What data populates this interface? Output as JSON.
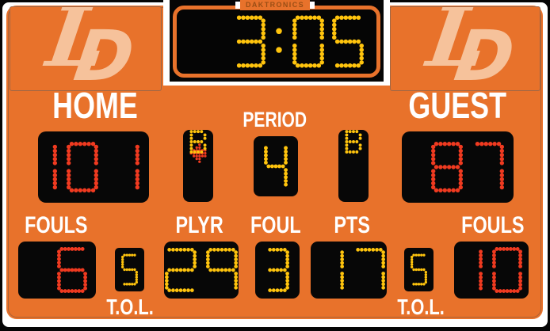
{
  "brand": "DAKTRONICS",
  "logo": {
    "l": "L",
    "d": "D"
  },
  "clock": {
    "time": "3:05"
  },
  "teams": {
    "home_label": "HOME",
    "guest_label": "GUEST"
  },
  "scores": {
    "home": "101",
    "guest": "87"
  },
  "period": {
    "label": "PERIOD",
    "value": "4"
  },
  "bonus": {
    "home_indicator": "B",
    "guest_indicator": "B",
    "possession": "home",
    "possession_icon": "left-arrow-icon"
  },
  "fouls": {
    "home_label": "FOULS",
    "guest_label": "FOULS",
    "home": "6",
    "guest": "10"
  },
  "tol": {
    "home_label": "T.O.L.",
    "guest_label": "T.O.L.",
    "home": "5",
    "guest": "5"
  },
  "player_stats": {
    "plyr_label": "PLYR",
    "plyr": "29",
    "foul_label": "FOUL",
    "foul": "3",
    "pts_label": "PTS",
    "pts": "17"
  },
  "colors": {
    "board_orange": "#E8722B",
    "led_red": "#F03A20",
    "led_yellow": "#FFC40D",
    "logo_peach": "#F6C29B",
    "label_white": "#FFFFFF"
  }
}
